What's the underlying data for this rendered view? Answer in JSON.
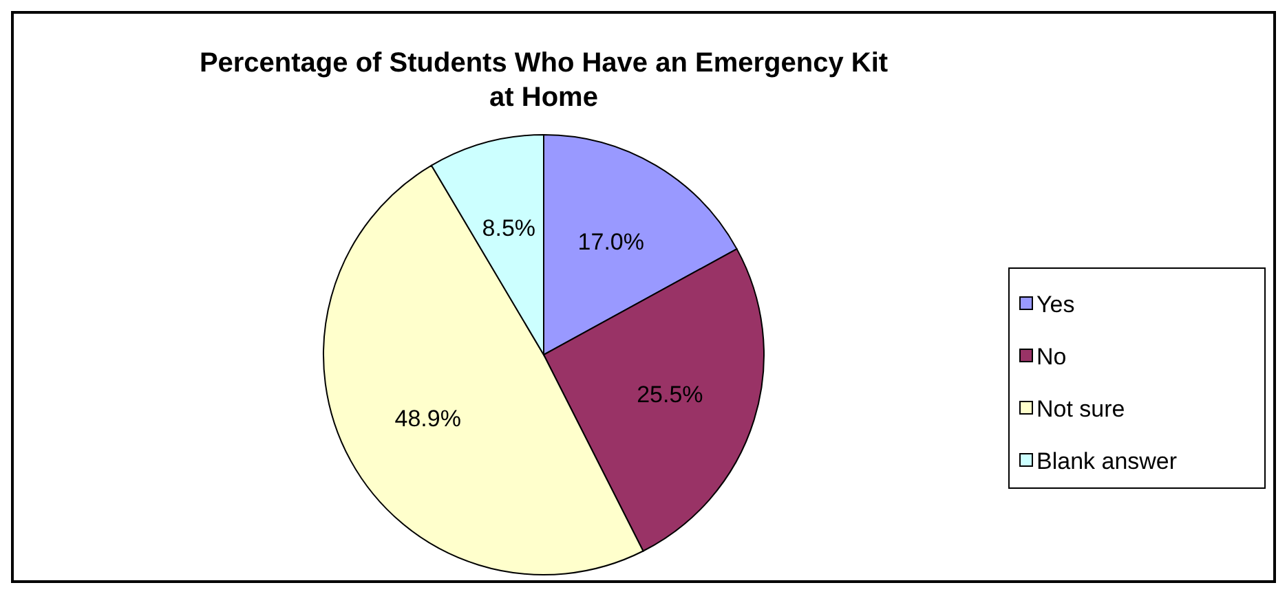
{
  "chart_data": {
    "type": "pie",
    "title": "Percentage of Students Who Have an Emergency Kit at Home",
    "categories": [
      "Yes",
      "No",
      "Not sure",
      "Blank answer"
    ],
    "values": [
      17.0,
      25.5,
      48.9,
      8.5
    ],
    "value_labels": [
      "17.0%",
      "25.5%",
      "48.9%",
      "8.5%"
    ],
    "colors": [
      "#9999ff",
      "#993366",
      "#ffffcc",
      "#ccffff"
    ],
    "legend": "right"
  }
}
